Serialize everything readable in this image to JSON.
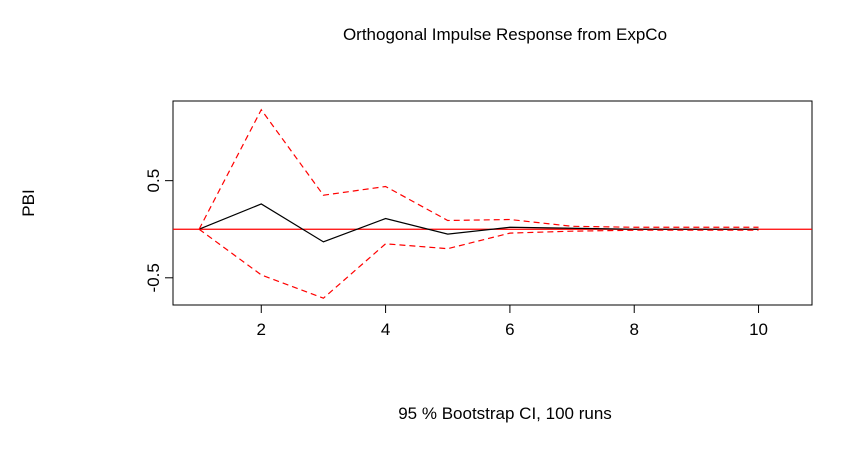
{
  "chart_data": {
    "type": "line",
    "title": "Orthogonal Impulse Response from ExpCo",
    "ylabel": "PBI",
    "xlabel": "95 % Bootstrap CI,  100 runs",
    "x": [
      1,
      2,
      3,
      4,
      5,
      6,
      7,
      8,
      9,
      10
    ],
    "series": [
      {
        "color": "#000000",
        "dashed": false,
        "values": [
          0,
          0.26,
          -0.13,
          0.11,
          -0.05,
          0.02,
          0.01,
          0,
          0,
          0
        ]
      },
      {
        "color": "#ff0000",
        "dashed": true,
        "values": [
          0,
          1.23,
          0.35,
          0.44,
          0.09,
          0.1,
          0.03,
          0.02,
          0.02,
          0.02
        ]
      },
      {
        "color": "#ff0000",
        "dashed": true,
        "values": [
          0,
          -0.47,
          -0.71,
          -0.15,
          -0.2,
          -0.04,
          -0.02,
          -0.01,
          -0.01,
          -0.01
        ]
      }
    ],
    "hline": 0,
    "hline_color": "#ff0000",
    "xlim": [
      0.58,
      10.86
    ],
    "xticks": [
      2,
      4,
      6,
      8,
      10
    ],
    "ylim": [
      -0.78,
      1.32
    ],
    "yticks": [
      -0.5,
      0.5
    ]
  }
}
